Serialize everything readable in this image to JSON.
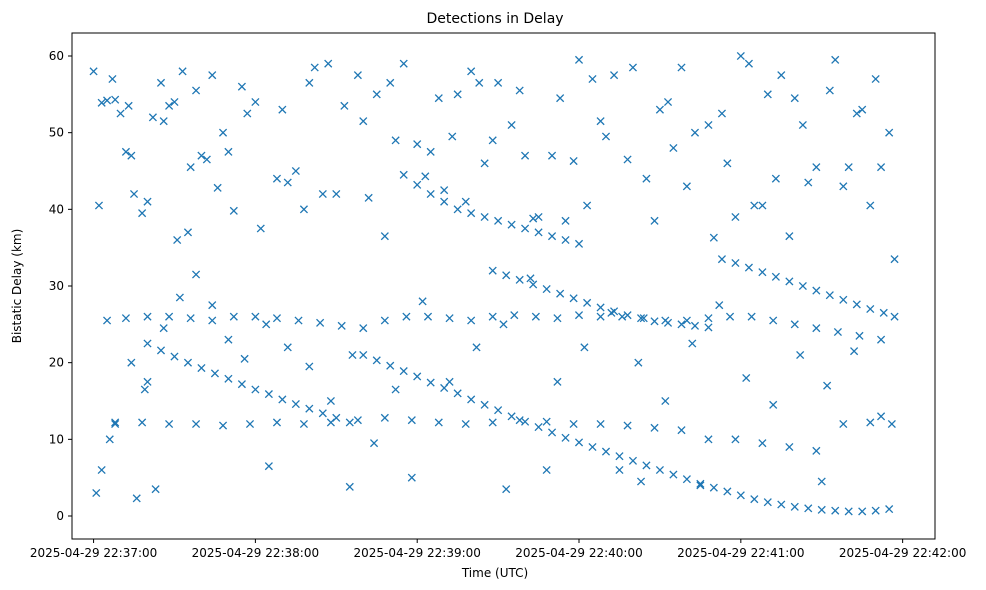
{
  "chart_data": {
    "type": "scatter",
    "title": "Detections in Delay",
    "xlabel": "Time (UTC)",
    "ylabel": "Bistatic Delay (km)",
    "marker": "x",
    "color": "#1f77b4",
    "grid": false,
    "legend": "none",
    "xlim": [
      "2025-04-29 22:36:52",
      "2025-04-29 22:42:12"
    ],
    "ylim": [
      -3,
      63
    ],
    "xticks": [
      "2025-04-29 22:37:00",
      "2025-04-29 22:38:00",
      "2025-04-29 22:39:00",
      "2025-04-29 22:40:00",
      "2025-04-29 22:41:00",
      "2025-04-29 22:42:00"
    ],
    "xtick_labels": [
      "2025-04-29 22:37:00",
      "2025-04-29 22:38:00",
      "2025-04-29 22:39:00",
      "2025-04-29 22:40:00",
      "2025-04-29 22:41:00",
      "2025-04-29 22:42:00"
    ],
    "yticks": [
      0,
      10,
      20,
      30,
      40,
      50,
      60
    ],
    "ytick_labels": [
      "0",
      "10",
      "20",
      "30",
      "40",
      "50",
      "60"
    ],
    "series": [
      {
        "x": [
          "2025-04-29 22:37:00",
          "2025-04-29 22:37:01",
          "2025-04-29 22:37:02",
          "2025-04-29 22:37:03",
          "2025-04-29 22:37:05",
          "2025-04-29 22:37:06",
          "2025-04-29 22:37:07",
          "2025-04-29 22:37:08",
          "2025-04-29 22:37:10",
          "2025-04-29 22:37:12",
          "2025-04-29 22:37:13",
          "2025-04-29 22:37:14",
          "2025-04-29 22:37:15",
          "2025-04-29 22:37:16",
          "2025-04-29 22:37:18",
          "2025-04-29 22:37:19",
          "2025-04-29 22:37:20",
          "2025-04-29 22:37:22",
          "2025-04-29 22:37:23",
          "2025-04-29 22:37:25",
          "2025-04-29 22:37:26",
          "2025-04-29 22:37:28",
          "2025-04-29 22:37:30",
          "2025-04-29 22:37:31",
          "2025-04-29 22:37:33",
          "2025-04-29 22:37:35",
          "2025-04-29 22:37:36",
          "2025-04-29 22:37:38",
          "2025-04-29 22:37:40",
          "2025-04-29 22:37:42",
          "2025-04-29 22:37:44",
          "2025-04-29 22:37:46",
          "2025-04-29 22:37:48",
          "2025-04-29 22:37:50",
          "2025-04-29 22:37:52",
          "2025-04-29 22:37:55",
          "2025-04-29 22:37:57",
          "2025-04-29 22:38:00",
          "2025-04-29 22:38:02",
          "2025-04-29 22:38:05",
          "2025-04-29 22:38:08",
          "2025-04-29 22:38:10",
          "2025-04-29 22:38:12",
          "2025-04-29 22:38:15",
          "2025-04-29 22:38:18",
          "2025-04-29 22:38:20",
          "2025-04-29 22:38:22",
          "2025-04-29 22:38:25",
          "2025-04-29 22:38:27",
          "2025-04-29 22:38:30",
          "2025-04-29 22:38:33",
          "2025-04-29 22:38:35",
          "2025-04-29 22:38:38",
          "2025-04-29 22:38:40",
          "2025-04-29 22:38:42",
          "2025-04-29 22:38:45",
          "2025-04-29 22:38:48",
          "2025-04-29 22:38:50",
          "2025-04-29 22:38:52",
          "2025-04-29 22:38:55",
          "2025-04-29 22:38:58",
          "2025-04-29 22:39:00",
          "2025-04-29 22:39:03",
          "2025-04-29 22:39:05",
          "2025-04-29 22:39:08",
          "2025-04-29 22:39:10",
          "2025-04-29 22:39:13",
          "2025-04-29 22:39:15",
          "2025-04-29 22:39:18",
          "2025-04-29 22:39:20",
          "2025-04-29 22:39:23",
          "2025-04-29 22:39:25",
          "2025-04-29 22:39:28",
          "2025-04-29 22:39:30",
          "2025-04-29 22:39:33",
          "2025-04-29 22:39:35",
          "2025-04-29 22:39:38",
          "2025-04-29 22:39:40",
          "2025-04-29 22:39:43",
          "2025-04-29 22:39:45",
          "2025-04-29 22:39:48",
          "2025-04-29 22:39:50",
          "2025-04-29 22:39:53",
          "2025-04-29 22:39:55",
          "2025-04-29 22:39:58",
          "2025-04-29 22:40:00",
          "2025-04-29 22:40:03",
          "2025-04-29 22:40:05",
          "2025-04-29 22:40:08",
          "2025-04-29 22:40:10",
          "2025-04-29 22:40:13",
          "2025-04-29 22:40:15",
          "2025-04-29 22:40:18",
          "2025-04-29 22:40:20",
          "2025-04-29 22:40:23",
          "2025-04-29 22:40:25",
          "2025-04-29 22:40:28",
          "2025-04-29 22:40:30",
          "2025-04-29 22:40:33",
          "2025-04-29 22:40:35",
          "2025-04-29 22:40:38",
          "2025-04-29 22:40:40",
          "2025-04-29 22:40:43",
          "2025-04-29 22:40:45",
          "2025-04-29 22:40:48",
          "2025-04-29 22:40:50",
          "2025-04-29 22:40:53",
          "2025-04-29 22:40:55",
          "2025-04-29 22:40:58",
          "2025-04-29 22:41:00",
          "2025-04-29 22:41:03",
          "2025-04-29 22:41:05",
          "2025-04-29 22:41:08",
          "2025-04-29 22:41:10",
          "2025-04-29 22:41:13",
          "2025-04-29 22:41:15",
          "2025-04-29 22:41:18",
          "2025-04-29 22:41:20",
          "2025-04-29 22:41:23",
          "2025-04-29 22:41:25",
          "2025-04-29 22:41:28",
          "2025-04-29 22:41:30",
          "2025-04-29 22:41:33",
          "2025-04-29 22:41:35",
          "2025-04-29 22:41:38",
          "2025-04-29 22:41:40",
          "2025-04-29 22:41:43",
          "2025-04-29 22:41:45",
          "2025-04-29 22:41:48",
          "2025-04-29 22:41:50",
          "2025-04-29 22:41:52",
          "2025-04-29 22:41:55",
          "2025-04-29 22:41:57",
          "2025-04-29 22:37:03",
          "2025-04-29 22:37:08",
          "2025-04-29 22:37:14",
          "2025-04-29 22:37:20",
          "2025-04-29 22:37:26",
          "2025-04-29 22:37:32",
          "2025-04-29 22:37:38",
          "2025-04-29 22:37:44",
          "2025-04-29 22:37:50",
          "2025-04-29 22:37:56",
          "2025-04-29 22:38:04",
          "2025-04-29 22:38:12",
          "2025-04-29 22:38:20",
          "2025-04-29 22:38:28",
          "2025-04-29 22:38:36",
          "2025-04-29 22:38:44",
          "2025-04-29 22:38:52",
          "2025-04-29 22:39:02",
          "2025-04-29 22:39:12",
          "2025-04-29 22:39:22",
          "2025-04-29 22:39:32",
          "2025-04-29 22:39:42",
          "2025-04-29 22:39:52",
          "2025-04-29 22:40:02",
          "2025-04-29 22:40:12",
          "2025-04-29 22:40:22",
          "2025-04-29 22:40:32",
          "2025-04-29 22:40:42",
          "2025-04-29 22:40:52",
          "2025-04-29 22:41:02",
          "2025-04-29 22:41:12",
          "2025-04-29 22:41:22",
          "2025-04-29 22:41:32",
          "2025-04-29 22:41:42",
          "2025-04-29 22:41:52"
        ],
        "y": [
          58.0,
          3.0,
          40.5,
          53.9,
          54.2,
          10.0,
          57.0,
          54.3,
          52.5,
          47.5,
          53.5,
          47.0,
          42.0,
          2.3,
          39.5,
          16.5,
          41.0,
          52.0,
          3.5,
          56.5,
          51.5,
          53.5,
          54.0,
          36.0,
          58.0,
          37.0,
          45.5,
          55.5,
          47.0,
          46.5,
          57.5,
          42.8,
          50.0,
          47.5,
          39.8,
          56.0,
          52.5,
          54.0,
          37.5,
          6.5,
          44.0,
          53.0,
          43.5,
          45.0,
          40.0,
          56.5,
          58.5,
          42.0,
          59.0,
          42.0,
          53.5,
          3.8,
          57.5,
          51.5,
          41.5,
          55.0,
          36.5,
          56.5,
          49.0,
          59.0,
          5.0,
          48.5,
          44.3,
          47.5,
          54.5,
          42.5,
          49.5,
          55.0,
          41.0,
          58.0,
          56.5,
          46.0,
          49.0,
          56.5,
          3.5,
          51.0,
          55.5,
          47.0,
          38.8,
          39.0,
          6.0,
          47.0,
          54.5,
          38.5,
          46.3,
          59.5,
          40.5,
          57.0,
          51.5,
          49.5,
          57.5,
          6.0,
          46.5,
          58.5,
          4.5,
          44.0,
          38.5,
          53.0,
          54.0,
          48.0,
          58.5,
          43.0,
          50.0,
          4.0,
          51.0,
          36.3,
          52.5,
          46.0,
          39.0,
          60.0,
          59.0,
          40.5,
          40.5,
          55.0,
          44.0,
          57.5,
          36.5,
          54.5,
          51.0,
          43.5,
          45.5,
          4.5,
          55.5,
          59.5,
          43.0,
          45.5,
          52.5,
          53.0,
          40.5,
          57.0,
          45.5,
          50.0,
          33.5,
          6.0,
          12.2,
          20.0,
          17.5,
          24.5,
          28.5,
          31.5,
          27.5,
          23.0,
          20.5,
          25.0,
          22.0,
          19.5,
          15.0,
          21.0,
          9.5,
          16.5,
          28.0,
          17.5,
          22.0,
          25.0,
          31.0,
          17.5,
          22.0,
          26.5,
          20.0,
          15.0,
          22.5,
          27.5,
          18.0,
          14.5,
          21.0,
          17.0,
          21.5,
          13.0
        ]
      },
      {
        "x": [
          "2025-04-29 22:37:20",
          "2025-04-29 22:37:25",
          "2025-04-29 22:37:30",
          "2025-04-29 22:37:35",
          "2025-04-29 22:37:40",
          "2025-04-29 22:37:45",
          "2025-04-29 22:37:50",
          "2025-04-29 22:37:55",
          "2025-04-29 22:38:00",
          "2025-04-29 22:38:05",
          "2025-04-29 22:38:10",
          "2025-04-29 22:38:15",
          "2025-04-29 22:38:20",
          "2025-04-29 22:38:25",
          "2025-04-29 22:38:30",
          "2025-04-29 22:38:35",
          "2025-04-29 22:38:40",
          "2025-04-29 22:38:45",
          "2025-04-29 22:38:50",
          "2025-04-29 22:38:55",
          "2025-04-29 22:39:00",
          "2025-04-29 22:39:05",
          "2025-04-29 22:39:10",
          "2025-04-29 22:39:15",
          "2025-04-29 22:39:20",
          "2025-04-29 22:39:25",
          "2025-04-29 22:39:30",
          "2025-04-29 22:39:35",
          "2025-04-29 22:39:40",
          "2025-04-29 22:39:45",
          "2025-04-29 22:39:50",
          "2025-04-29 22:39:55",
          "2025-04-29 22:40:00",
          "2025-04-29 22:40:05",
          "2025-04-29 22:40:10",
          "2025-04-29 22:40:15",
          "2025-04-29 22:40:20",
          "2025-04-29 22:40:25",
          "2025-04-29 22:40:30",
          "2025-04-29 22:40:35",
          "2025-04-29 22:40:40",
          "2025-04-29 22:40:45",
          "2025-04-29 22:40:50",
          "2025-04-29 22:40:55",
          "2025-04-29 22:41:00",
          "2025-04-29 22:41:05",
          "2025-04-29 22:41:10",
          "2025-04-29 22:41:15",
          "2025-04-29 22:41:20",
          "2025-04-29 22:41:25",
          "2025-04-29 22:41:30",
          "2025-04-29 22:41:35",
          "2025-04-29 22:41:40",
          "2025-04-29 22:41:45",
          "2025-04-29 22:41:50",
          "2025-04-29 22:41:55"
        ],
        "y": [
          22.5,
          21.6,
          20.8,
          20.0,
          19.3,
          18.6,
          17.9,
          17.2,
          16.5,
          15.9,
          15.2,
          14.6,
          14.0,
          13.4,
          12.8,
          12.2,
          21.0,
          20.3,
          19.6,
          18.9,
          18.2,
          17.4,
          16.7,
          16.0,
          15.2,
          14.5,
          13.8,
          13.0,
          12.3,
          11.6,
          10.9,
          10.2,
          9.6,
          9.0,
          8.4,
          7.8,
          7.2,
          6.6,
          6.0,
          5.4,
          4.8,
          4.2,
          3.7,
          3.2,
          2.7,
          2.2,
          1.8,
          1.5,
          1.2,
          1.0,
          0.8,
          0.7,
          0.6,
          0.6,
          0.7,
          0.9
        ]
      },
      {
        "x": [
          "2025-04-29 22:38:55",
          "2025-04-29 22:39:00",
          "2025-04-29 22:39:05",
          "2025-04-29 22:39:10",
          "2025-04-29 22:39:15",
          "2025-04-29 22:39:20",
          "2025-04-29 22:39:25",
          "2025-04-29 22:39:30",
          "2025-04-29 22:39:35",
          "2025-04-29 22:39:40",
          "2025-04-29 22:39:45",
          "2025-04-29 22:39:50",
          "2025-04-29 22:39:55",
          "2025-04-29 22:40:00",
          "2025-04-29 22:39:28",
          "2025-04-29 22:39:33",
          "2025-04-29 22:39:38",
          "2025-04-29 22:39:43",
          "2025-04-29 22:39:48",
          "2025-04-29 22:39:53",
          "2025-04-29 22:39:58",
          "2025-04-29 22:40:03",
          "2025-04-29 22:40:08",
          "2025-04-29 22:40:13",
          "2025-04-29 22:40:18",
          "2025-04-29 22:40:23",
          "2025-04-29 22:40:28",
          "2025-04-29 22:40:33",
          "2025-04-29 22:40:38",
          "2025-04-29 22:40:43",
          "2025-04-29 22:40:48",
          "2025-04-29 22:40:53",
          "2025-04-29 22:40:58",
          "2025-04-29 22:41:03",
          "2025-04-29 22:41:08",
          "2025-04-29 22:41:13",
          "2025-04-29 22:41:18",
          "2025-04-29 22:41:23",
          "2025-04-29 22:41:28",
          "2025-04-29 22:41:33",
          "2025-04-29 22:41:38",
          "2025-04-29 22:41:43",
          "2025-04-29 22:41:48",
          "2025-04-29 22:41:53",
          "2025-04-29 22:41:57"
        ],
        "y": [
          44.5,
          43.2,
          42.0,
          41.0,
          40.0,
          39.5,
          39.0,
          38.5,
          38.0,
          37.5,
          37.0,
          36.5,
          36.0,
          35.5,
          32.0,
          31.4,
          30.8,
          30.2,
          29.6,
          29.0,
          28.4,
          27.8,
          27.2,
          26.7,
          26.2,
          25.8,
          25.4,
          25.2,
          25.0,
          24.8,
          24.6,
          33.5,
          33.0,
          32.4,
          31.8,
          31.2,
          30.6,
          30.0,
          29.4,
          28.8,
          28.2,
          27.6,
          27.0,
          26.5,
          26.0
        ]
      },
      {
        "x": [
          "2025-04-29 22:37:05",
          "2025-04-29 22:37:12",
          "2025-04-29 22:37:20",
          "2025-04-29 22:37:28",
          "2025-04-29 22:37:36",
          "2025-04-29 22:37:44",
          "2025-04-29 22:37:52",
          "2025-04-29 22:38:00",
          "2025-04-29 22:38:08",
          "2025-04-29 22:38:16",
          "2025-04-29 22:38:24",
          "2025-04-29 22:38:32",
          "2025-04-29 22:38:40",
          "2025-04-29 22:38:48",
          "2025-04-29 22:38:56",
          "2025-04-29 22:39:04",
          "2025-04-29 22:39:12",
          "2025-04-29 22:39:20",
          "2025-04-29 22:39:28",
          "2025-04-29 22:39:36",
          "2025-04-29 22:39:44",
          "2025-04-29 22:39:52",
          "2025-04-29 22:40:00",
          "2025-04-29 22:40:08",
          "2025-04-29 22:40:16",
          "2025-04-29 22:40:24",
          "2025-04-29 22:40:32",
          "2025-04-29 22:40:40",
          "2025-04-29 22:40:48",
          "2025-04-29 22:40:56",
          "2025-04-29 22:41:04",
          "2025-04-29 22:41:12",
          "2025-04-29 22:41:20",
          "2025-04-29 22:41:28",
          "2025-04-29 22:41:36",
          "2025-04-29 22:41:44",
          "2025-04-29 22:41:52",
          "2025-04-29 22:37:08",
          "2025-04-29 22:37:18",
          "2025-04-29 22:37:28",
          "2025-04-29 22:37:38",
          "2025-04-29 22:37:48",
          "2025-04-29 22:37:58",
          "2025-04-29 22:38:08",
          "2025-04-29 22:38:18",
          "2025-04-29 22:38:28",
          "2025-04-29 22:38:38",
          "2025-04-29 22:38:48",
          "2025-04-29 22:38:58",
          "2025-04-29 22:39:08",
          "2025-04-29 22:39:18",
          "2025-04-29 22:39:28",
          "2025-04-29 22:39:38",
          "2025-04-29 22:39:48",
          "2025-04-29 22:39:58",
          "2025-04-29 22:40:08",
          "2025-04-29 22:40:18",
          "2025-04-29 22:40:28",
          "2025-04-29 22:40:38",
          "2025-04-29 22:40:48",
          "2025-04-29 22:40:58",
          "2025-04-29 22:41:08",
          "2025-04-29 22:41:18",
          "2025-04-29 22:41:28",
          "2025-04-29 22:41:38",
          "2025-04-29 22:41:48",
          "2025-04-29 22:41:56"
        ],
        "y": [
          25.5,
          25.8,
          26.0,
          26.0,
          25.8,
          25.5,
          26.0,
          26.0,
          25.8,
          25.5,
          25.2,
          24.8,
          24.5,
          25.5,
          26.0,
          26.0,
          25.8,
          25.5,
          26.0,
          26.2,
          26.0,
          25.8,
          26.2,
          26.0,
          26.0,
          25.8,
          25.5,
          25.5,
          25.8,
          26.0,
          26.0,
          25.5,
          25.0,
          24.5,
          24.0,
          23.5,
          23.0,
          12.0,
          12.2,
          12.0,
          12.0,
          11.8,
          12.0,
          12.2,
          12.0,
          12.2,
          12.5,
          12.8,
          12.5,
          12.2,
          12.0,
          12.2,
          12.5,
          12.3,
          12.0,
          12.0,
          11.8,
          11.5,
          11.2,
          10.0,
          10.0,
          9.5,
          9.0,
          8.5,
          12.0,
          12.2,
          12.0
        ]
      }
    ]
  }
}
